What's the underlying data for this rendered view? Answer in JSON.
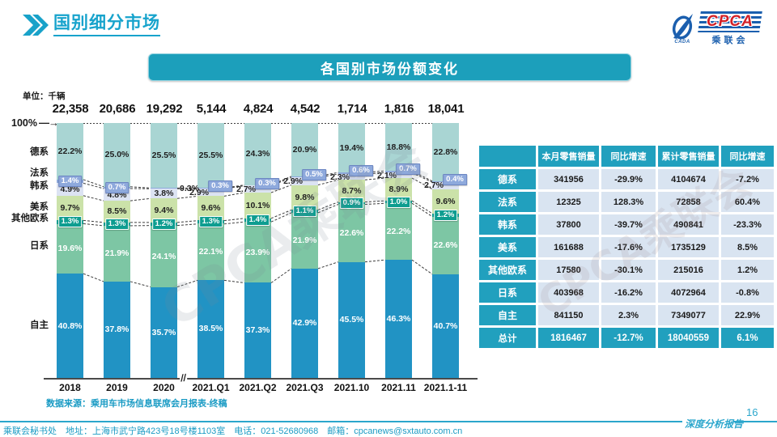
{
  "page": {
    "title": "国别细分市场",
    "page_number": "16",
    "report_tag": "深度分析报告",
    "watermark": "CPCA乘联会",
    "source_note": "数据来源：乘用车市场信息联席会月报表-终稿",
    "footer_contact": "乘联会秘书处　地址：上海市武宁路423号18号楼1103室　电话：021-52680968　邮箱：cpcanews@sxtauto.com.cn"
  },
  "logo": {
    "acronym": "CPCA",
    "cn_name": "乘联会",
    "swoosh_caption": "CADA"
  },
  "banner": {
    "title": "各国别市场份额变化"
  },
  "chart_data": {
    "type": "bar",
    "stacked": true,
    "unit_label": "单位：千辆",
    "axis_top_label": "100%",
    "ylim": [
      0,
      100
    ],
    "break_mark": "//",
    "categories": [
      "2018",
      "2019",
      "2020",
      "2021.Q1",
      "2021.Q2",
      "2021.Q3",
      "2021.10",
      "2021.11",
      "2021.1-11"
    ],
    "totals": [
      "22,358",
      "20,686",
      "19,292",
      "5,144",
      "4,824",
      "4,542",
      "1,714",
      "1,816",
      "18,041"
    ],
    "series": [
      {
        "name": "德系",
        "color": "#a9d5d3",
        "values": [
          22.2,
          25.0,
          25.5,
          25.5,
          24.3,
          20.9,
          19.4,
          18.8,
          22.8
        ]
      },
      {
        "name": "法系",
        "color": "#8ea9dc",
        "values": [
          1.4,
          0.7,
          0.3,
          0.3,
          0.3,
          0.5,
          0.6,
          0.7,
          0.4
        ]
      },
      {
        "name": "韩系",
        "color": "#dce3f3",
        "values": [
          4.9,
          4.8,
          3.8,
          2.9,
          2.7,
          2.9,
          2.3,
          2.1,
          2.7
        ]
      },
      {
        "name": "美系",
        "color": "#cbe2a9",
        "values": [
          9.7,
          8.5,
          9.4,
          9.6,
          10.1,
          9.8,
          8.7,
          8.9,
          9.6
        ]
      },
      {
        "name": "其他欧系",
        "color": "#0e9d90",
        "values": [
          1.3,
          1.3,
          1.2,
          1.3,
          1.4,
          1.1,
          0.9,
          1.0,
          1.2
        ]
      },
      {
        "name": "日系",
        "color": "#7dc6a4",
        "values": [
          19.6,
          21.9,
          24.1,
          22.1,
          23.9,
          21.9,
          22.6,
          22.2,
          22.6
        ]
      },
      {
        "name": "自主",
        "color": "#2193c4",
        "values": [
          40.8,
          37.8,
          35.7,
          38.5,
          37.3,
          42.9,
          45.5,
          46.3,
          40.7
        ]
      }
    ]
  },
  "table": {
    "headers": [
      "",
      "本月零售销量",
      "同比增速",
      "累计零售销量",
      "同比增速"
    ],
    "rows": [
      {
        "label": "德系",
        "cells": [
          "341956",
          "-29.9%",
          "4104674",
          "-7.2%"
        ]
      },
      {
        "label": "法系",
        "cells": [
          "12325",
          "128.3%",
          "72858",
          "60.4%"
        ]
      },
      {
        "label": "韩系",
        "cells": [
          "37800",
          "-39.7%",
          "490841",
          "-23.3%"
        ]
      },
      {
        "label": "美系",
        "cells": [
          "161688",
          "-17.6%",
          "1735129",
          "8.5%"
        ]
      },
      {
        "label": "其他欧系",
        "cells": [
          "17580",
          "-30.1%",
          "215016",
          "1.2%"
        ]
      },
      {
        "label": "日系",
        "cells": [
          "403968",
          "-16.2%",
          "4072964",
          "-0.8%"
        ]
      },
      {
        "label": "自主",
        "cells": [
          "841150",
          "2.3%",
          "7349077",
          "22.9%"
        ]
      },
      {
        "label": "总计",
        "cells": [
          "1816467",
          "-12.7%",
          "18040559",
          "6.1%"
        ],
        "is_total": true
      }
    ]
  }
}
